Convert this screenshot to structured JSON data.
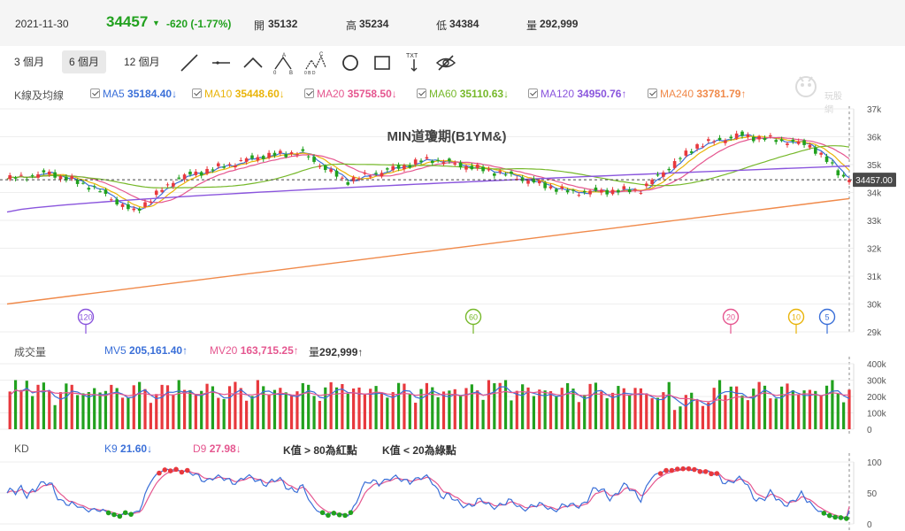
{
  "header": {
    "date": "2021-11-30",
    "price": "34457",
    "change": "-620 (-1.77%)",
    "open_label": "開",
    "open": "35132",
    "high_label": "高",
    "high": "35234",
    "low_label": "低",
    "low": "34384",
    "volume_label": "量",
    "volume": "292,999",
    "colors": {
      "down": "#21a11e",
      "up": "#e8383d"
    }
  },
  "toolbar": {
    "periods": [
      "3 個月",
      "6 個月",
      "12 個月"
    ],
    "active_period": "6 個月",
    "tools": [
      "line-tool-icon",
      "horizontal-line-tool-icon",
      "wedge-tool-icon",
      "abc-pattern-tool-icon",
      "abcd-pattern-tool-icon",
      "circle-tool-icon",
      "rectangle-tool-icon",
      "text-tool-icon",
      "hide-eye-icon"
    ],
    "text_tool_label": "TXT"
  },
  "main_legend": {
    "title": "K線及均線",
    "items": [
      {
        "label": "MA5",
        "value": "35184.40",
        "arrow": "↓",
        "color": "#3a6fd8"
      },
      {
        "label": "MA10",
        "value": "35448.60",
        "arrow": "↓",
        "color": "#e9b40a"
      },
      {
        "label": "MA20",
        "value": "35758.50",
        "arrow": "↓",
        "color": "#e5568f"
      },
      {
        "label": "MA60",
        "value": "35110.63",
        "arrow": "↓",
        "color": "#76b82a"
      },
      {
        "label": "MA120",
        "value": "34950.76",
        "arrow": "↑",
        "color": "#8a55dd"
      },
      {
        "label": "MA240",
        "value": "33781.79",
        "arrow": "↑",
        "color": "#f08a4b"
      }
    ]
  },
  "watermark": "玩股網",
  "chart_data": [
    {
      "type": "candlestick",
      "title": "MIN道瓊期(B1YM&)",
      "ylim": [
        29000,
        37000
      ],
      "yticks": [
        "37k",
        "36k",
        "35k",
        "34k",
        "33k",
        "32k",
        "31k",
        "30k",
        "29k"
      ],
      "last_price_label": "34457.00",
      "last_price": 34457,
      "ma_markers": [
        "120",
        "60",
        "20",
        "10",
        "5"
      ],
      "series": [
        {
          "name": "MA5",
          "color": "#3a6fd8"
        },
        {
          "name": "MA10",
          "color": "#e9b40a"
        },
        {
          "name": "MA20",
          "color": "#e5568f"
        },
        {
          "name": "MA60",
          "color": "#76b82a"
        },
        {
          "name": "MA120",
          "color": "#8a55dd",
          "values": [
            33300,
            34950
          ]
        },
        {
          "name": "MA240",
          "color": "#f08a4b",
          "values": [
            30000,
            33781
          ]
        }
      ]
    },
    {
      "type": "bar",
      "title": "成交量",
      "ylim": [
        0,
        400000
      ],
      "yticks": [
        "400k",
        "300k",
        "200k",
        "100k",
        "0"
      ],
      "legend": [
        {
          "label": "MV5",
          "value": "205,161.40",
          "arrow": "↑",
          "color": "#3a6fd8"
        },
        {
          "label": "MV20",
          "value": "163,715.25",
          "arrow": "↑",
          "color": "#e5568f"
        },
        {
          "label": "量",
          "value": "292,999",
          "arrow": "↑",
          "color": "#333333"
        }
      ]
    },
    {
      "type": "line",
      "title": "KD",
      "ylim": [
        0,
        100
      ],
      "yticks": [
        "100",
        "50",
        "0"
      ],
      "legend": [
        {
          "label": "K9",
          "value": "21.60",
          "arrow": "↓",
          "color": "#3a6fd8"
        },
        {
          "label": "D9",
          "value": "27.98",
          "arrow": "↓",
          "color": "#e5568f"
        }
      ],
      "notes": [
        "K值 > 80為紅點",
        "K值 < 20為綠點"
      ]
    }
  ]
}
